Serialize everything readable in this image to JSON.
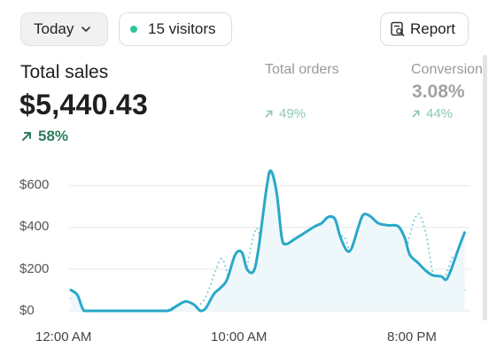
{
  "filters": {
    "period_label": "Today",
    "visitors_label": "15 visitors",
    "report_label": "Report"
  },
  "metrics": {
    "total_sales": {
      "label": "Total sales",
      "value": "$5,440.43",
      "change": "58%"
    },
    "total_orders": {
      "label": "Total orders",
      "change": "49%"
    },
    "conversion": {
      "label": "Conversion",
      "value": "3.08%",
      "change": "44%"
    }
  },
  "colors": {
    "primary_line": "#2aa8c9",
    "comparison_line": "#8ecfe0",
    "positive": "#2e7d5b",
    "live_dot": "#2fc49a"
  },
  "icons": {
    "period_dropdown": "chevron-down-icon",
    "report": "report-search-icon",
    "trend": "arrow-up-right-icon"
  },
  "chart_data": {
    "type": "line",
    "y_tick_labels": [
      "$0",
      "$200",
      "$400",
      "$600"
    ],
    "x_tick_labels": [
      "12:00 AM",
      "10:00 AM",
      "8:00 PM"
    ],
    "ylim": [
      0,
      700
    ],
    "x_range_hours": [
      0,
      24
    ],
    "grid": true,
    "series": [
      {
        "style": "solid",
        "points": [
          [
            0.0,
            100
          ],
          [
            0.4,
            75
          ],
          [
            0.8,
            0
          ],
          [
            1.5,
            0
          ],
          [
            3,
            0
          ],
          [
            4.5,
            0
          ],
          [
            5.8,
            0
          ],
          [
            6.3,
            20
          ],
          [
            6.9,
            45
          ],
          [
            7.4,
            30
          ],
          [
            7.8,
            0
          ],
          [
            8.1,
            10
          ],
          [
            8.6,
            80
          ],
          [
            9.0,
            110
          ],
          [
            9.4,
            150
          ],
          [
            9.9,
            270
          ],
          [
            10.3,
            280
          ],
          [
            10.6,
            200
          ],
          [
            11.0,
            190
          ],
          [
            11.3,
            300
          ],
          [
            11.8,
            600
          ],
          [
            12.05,
            670
          ],
          [
            12.4,
            560
          ],
          [
            12.7,
            350
          ],
          [
            12.95,
            320
          ],
          [
            13.4,
            340
          ],
          [
            14.0,
            370
          ],
          [
            14.7,
            405
          ],
          [
            15.1,
            420
          ],
          [
            15.5,
            450
          ],
          [
            15.9,
            440
          ],
          [
            16.2,
            360
          ],
          [
            16.6,
            290
          ],
          [
            16.9,
            300
          ],
          [
            17.3,
            400
          ],
          [
            17.6,
            460
          ],
          [
            18.0,
            455
          ],
          [
            18.5,
            420
          ],
          [
            19.1,
            410
          ],
          [
            19.7,
            405
          ],
          [
            20.1,
            350
          ],
          [
            20.4,
            270
          ],
          [
            20.9,
            230
          ],
          [
            21.4,
            190
          ],
          [
            21.8,
            170
          ],
          [
            22.3,
            165
          ],
          [
            22.6,
            150
          ],
          [
            22.9,
            200
          ],
          [
            23.3,
            290
          ],
          [
            23.7,
            375
          ]
        ]
      },
      {
        "style": "dotted",
        "points": [
          [
            0.0,
            60
          ],
          [
            0.3,
            20
          ],
          [
            0.8,
            0
          ],
          [
            3,
            0
          ],
          [
            5.5,
            0
          ],
          [
            6.3,
            25
          ],
          [
            6.8,
            30
          ],
          [
            7.3,
            10
          ],
          [
            7.9,
            40
          ],
          [
            8.3,
            100
          ],
          [
            8.7,
            190
          ],
          [
            9.1,
            250
          ],
          [
            9.5,
            160
          ],
          [
            9.8,
            110
          ],
          [
            10.2,
            80
          ],
          [
            10.6,
            210
          ],
          [
            11.0,
            360
          ],
          [
            11.3,
            380
          ],
          [
            11.7,
            150
          ],
          [
            12.1,
            90
          ],
          [
            12.5,
            160
          ],
          [
            12.9,
            290
          ],
          [
            13.3,
            330
          ],
          [
            13.7,
            250
          ],
          [
            14.1,
            190
          ],
          [
            14.6,
            240
          ],
          [
            15.0,
            120
          ],
          [
            15.3,
            50
          ],
          [
            15.7,
            100
          ],
          [
            16.0,
            290
          ],
          [
            16.4,
            360
          ],
          [
            16.8,
            280
          ],
          [
            17.1,
            200
          ],
          [
            17.5,
            180
          ],
          [
            17.9,
            190
          ],
          [
            18.3,
            170
          ],
          [
            18.8,
            190
          ],
          [
            19.2,
            180
          ],
          [
            19.6,
            160
          ],
          [
            20.0,
            230
          ],
          [
            20.4,
            360
          ],
          [
            20.7,
            440
          ],
          [
            21.0,
            460
          ],
          [
            21.4,
            360
          ],
          [
            21.8,
            180
          ],
          [
            22.2,
            130
          ],
          [
            22.6,
            180
          ],
          [
            23.0,
            260
          ],
          [
            23.4,
            240
          ],
          [
            23.7,
            100
          ]
        ]
      }
    ]
  }
}
